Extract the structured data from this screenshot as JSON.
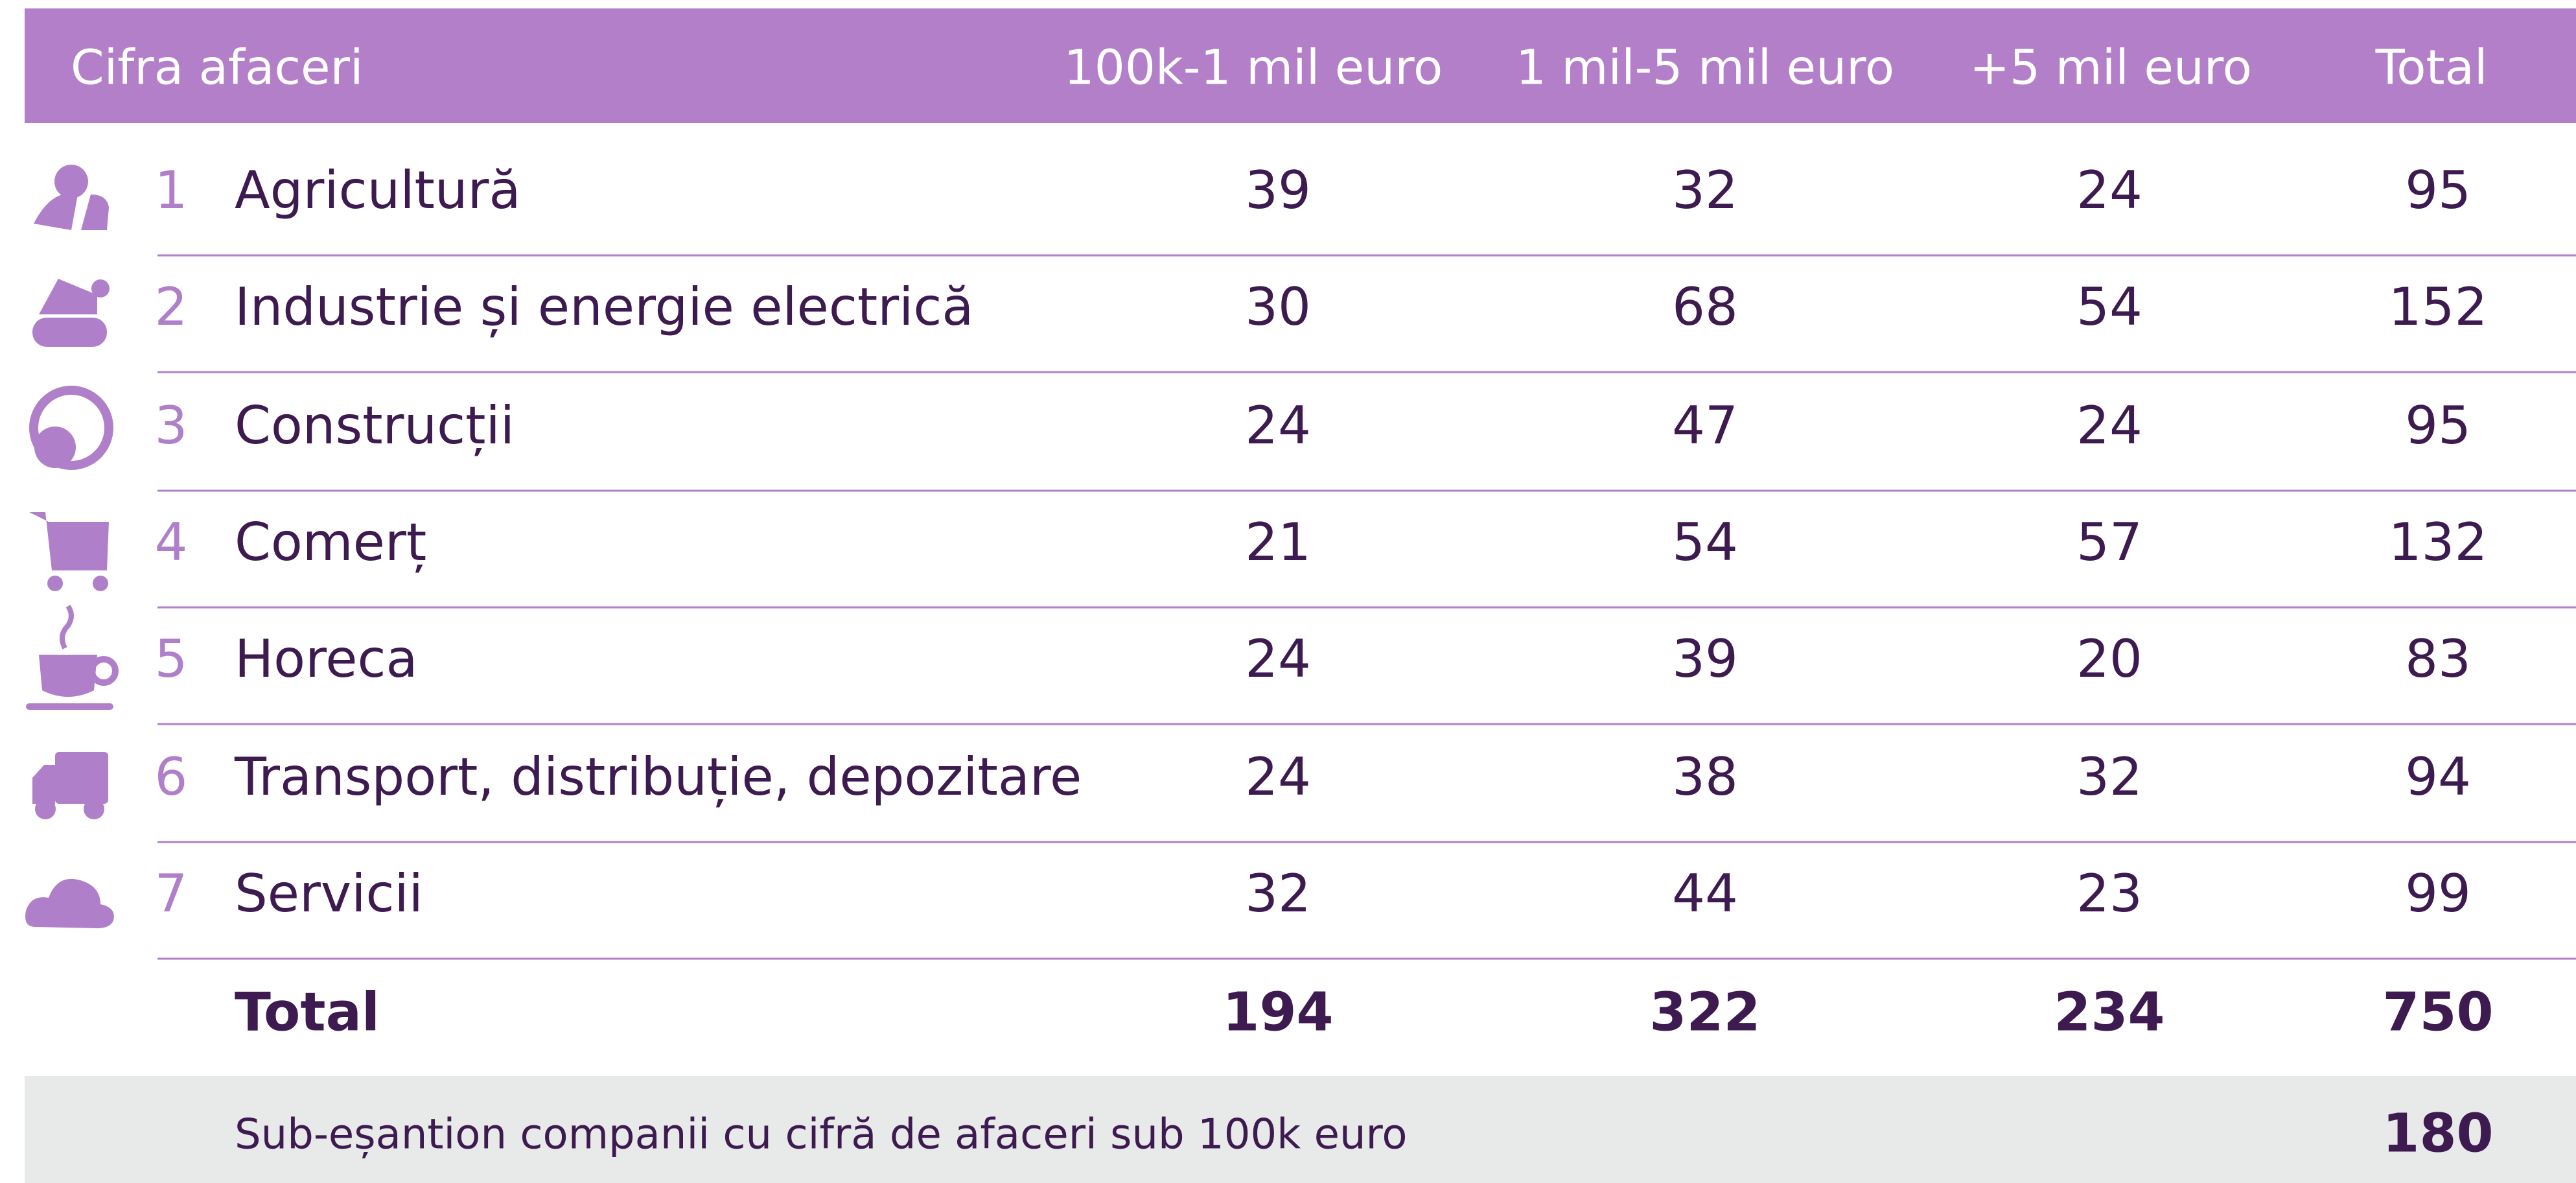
{
  "table": {
    "header": [
      "Cifra afaceri",
      "100k-1 mil euro",
      "1 mil-5 mil euro",
      "+5 mil euro",
      "Total"
    ],
    "rows": [
      [
        1,
        "Agricultură",
        39,
        32,
        24,
        95
      ],
      [
        2,
        "Industrie și energie electrică",
        30,
        68,
        54,
        152
      ],
      [
        3,
        "Construcții",
        24,
        47,
        24,
        95
      ],
      [
        4,
        "Comerț",
        21,
        54,
        57,
        132
      ],
      [
        5,
        "Horeca",
        24,
        39,
        20,
        83
      ],
      [
        6,
        "Transport, distribuție, depozitare",
        24,
        38,
        32,
        94
      ],
      [
        7,
        "Servicii",
        32,
        44,
        23,
        99
      ]
    ],
    "total": [
      "Total",
      194,
      322,
      234,
      750
    ],
    "footer": [
      "Sub-eșantion companii cu cifră de afaceri sub 100k euro",
      180
    ]
  }
}
